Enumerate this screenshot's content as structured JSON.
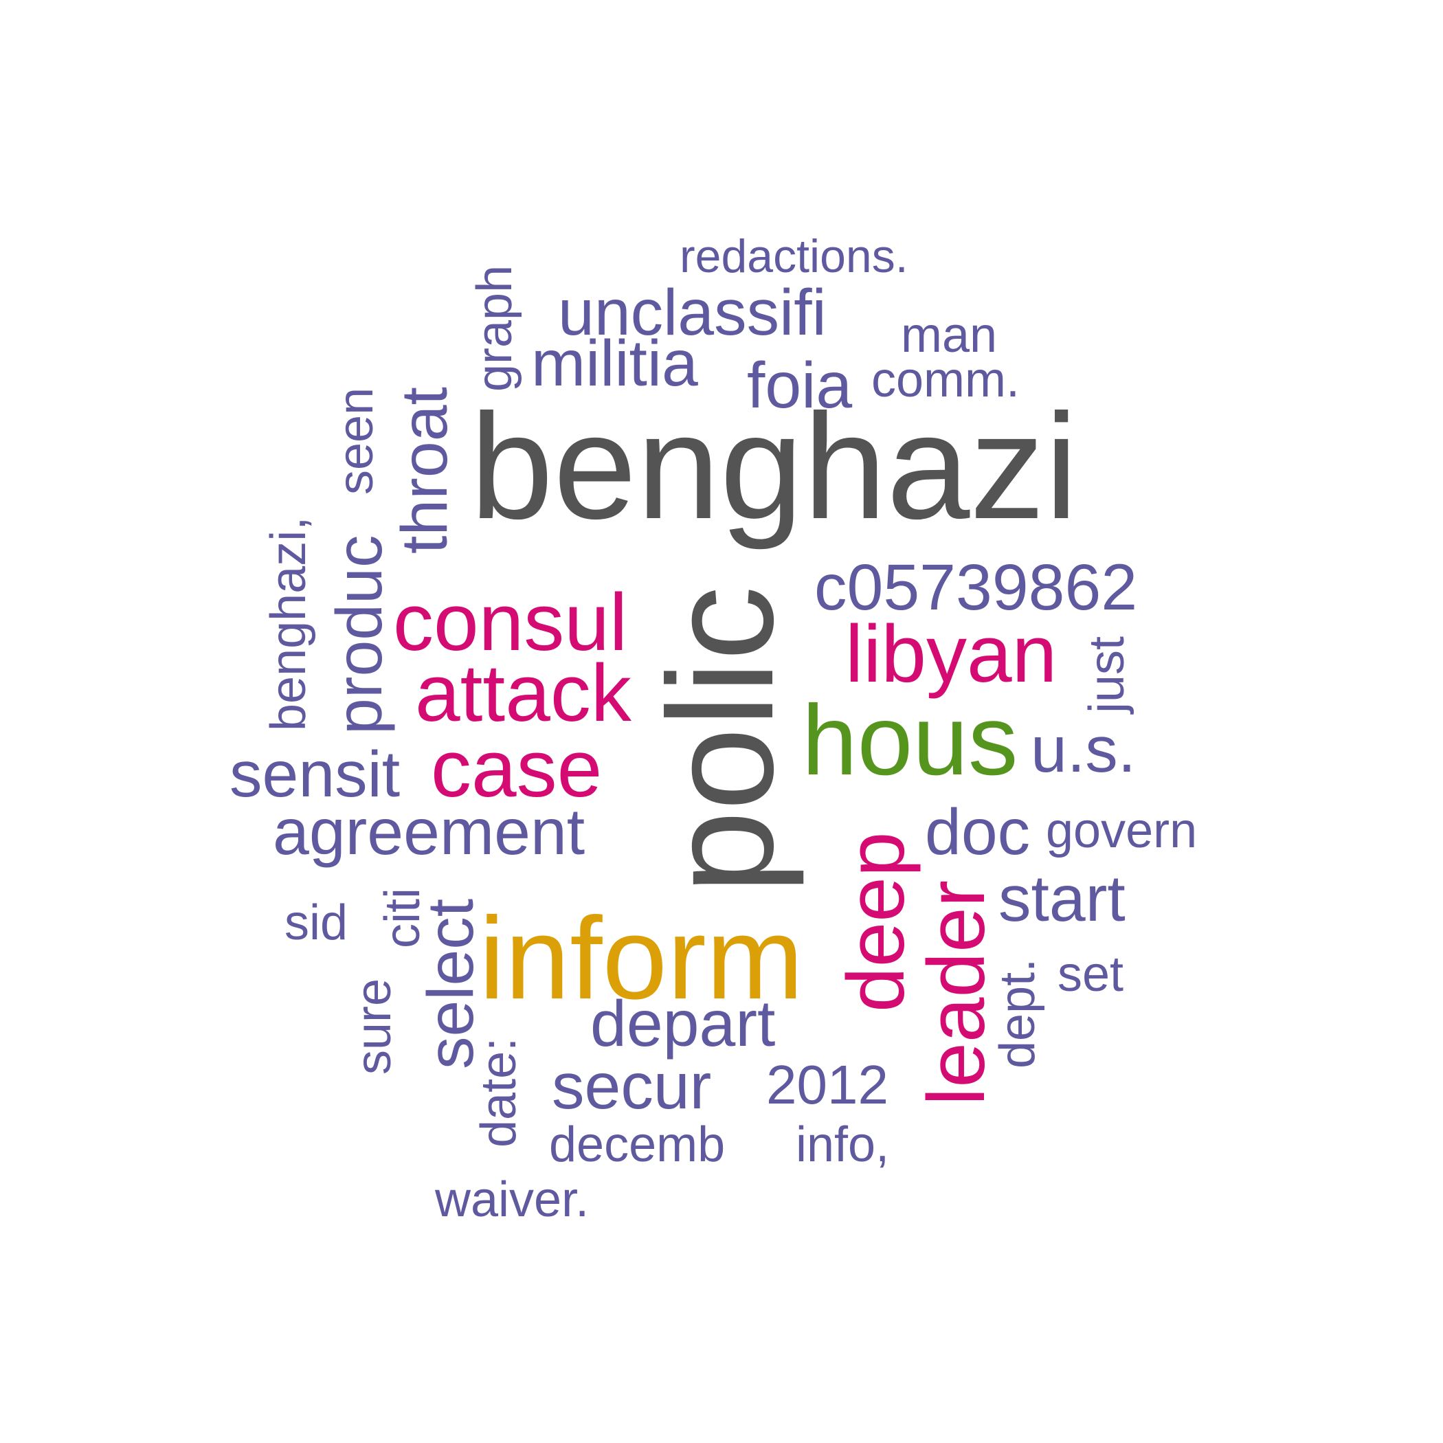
{
  "palette": {
    "dark_gray": "#545454",
    "purple": "#5f5a9f",
    "magenta": "#d50b74",
    "green": "#55951e",
    "gold": "#dba008"
  },
  "words": [
    {
      "text": "redactions.",
      "color": "purple",
      "vertical": false
    },
    {
      "text": "graph",
      "color": "purple",
      "vertical": true
    },
    {
      "text": "unclassifi",
      "color": "purple",
      "vertical": false
    },
    {
      "text": "man",
      "color": "purple",
      "vertical": false
    },
    {
      "text": "militia",
      "color": "purple",
      "vertical": false
    },
    {
      "text": "foia",
      "color": "purple",
      "vertical": false
    },
    {
      "text": "comm.",
      "color": "purple",
      "vertical": false
    },
    {
      "text": "seen",
      "color": "purple",
      "vertical": true
    },
    {
      "text": "throat",
      "color": "purple",
      "vertical": true
    },
    {
      "text": "benghazi",
      "color": "dark_gray",
      "vertical": false
    },
    {
      "text": "benghazi,",
      "color": "purple",
      "vertical": true
    },
    {
      "text": "produc",
      "color": "purple",
      "vertical": true
    },
    {
      "text": "c05739862",
      "color": "purple",
      "vertical": false
    },
    {
      "text": "polic",
      "color": "dark_gray",
      "vertical": true
    },
    {
      "text": "consul",
      "color": "magenta",
      "vertical": false
    },
    {
      "text": "libyan",
      "color": "magenta",
      "vertical": false
    },
    {
      "text": "just",
      "color": "purple",
      "vertical": true
    },
    {
      "text": "attack",
      "color": "magenta",
      "vertical": false
    },
    {
      "text": "hous",
      "color": "green",
      "vertical": false
    },
    {
      "text": "u.s.",
      "color": "purple",
      "vertical": false
    },
    {
      "text": "sensit",
      "color": "purple",
      "vertical": false
    },
    {
      "text": "case",
      "color": "magenta",
      "vertical": false
    },
    {
      "text": "agreement",
      "color": "purple",
      "vertical": false
    },
    {
      "text": "doc",
      "color": "purple",
      "vertical": false
    },
    {
      "text": "govern",
      "color": "purple",
      "vertical": false
    },
    {
      "text": "deep",
      "color": "magenta",
      "vertical": true
    },
    {
      "text": "start",
      "color": "purple",
      "vertical": false
    },
    {
      "text": "sid",
      "color": "purple",
      "vertical": false
    },
    {
      "text": "citi",
      "color": "purple",
      "vertical": true
    },
    {
      "text": "select",
      "color": "purple",
      "vertical": true
    },
    {
      "text": "inform",
      "color": "gold",
      "vertical": false
    },
    {
      "text": "leader",
      "color": "magenta",
      "vertical": true
    },
    {
      "text": "dept.",
      "color": "purple",
      "vertical": true
    },
    {
      "text": "set",
      "color": "purple",
      "vertical": false
    },
    {
      "text": "sure",
      "color": "purple",
      "vertical": true
    },
    {
      "text": "depart",
      "color": "purple",
      "vertical": false
    },
    {
      "text": "date:",
      "color": "purple",
      "vertical": true
    },
    {
      "text": "secur",
      "color": "purple",
      "vertical": false
    },
    {
      "text": "2012",
      "color": "purple",
      "vertical": false
    },
    {
      "text": "decemb",
      "color": "purple",
      "vertical": false
    },
    {
      "text": "info,",
      "color": "purple",
      "vertical": false
    },
    {
      "text": "waiver.",
      "color": "purple",
      "vertical": false
    }
  ]
}
